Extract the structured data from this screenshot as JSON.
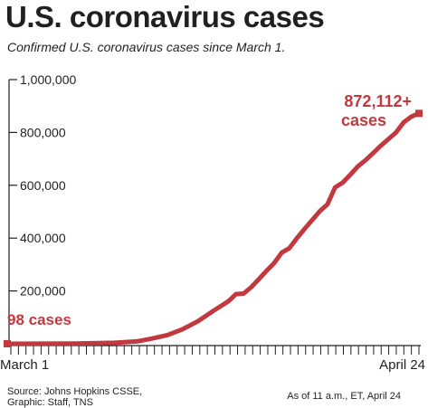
{
  "title": "U.S. coronavirus cases",
  "subtitle": "Confirmed U.S. coronavirus cases since March 1.",
  "footer": {
    "source_line1": "Source: Johns Hopkins CSSE,",
    "source_line2": "Graphic: Staff, TNS",
    "as_of": "As of 11 a.m., ET, April 24"
  },
  "colors": {
    "line": "#c1393f",
    "text": "#231f20",
    "axis": "#231f20"
  },
  "chart_data": {
    "type": "line",
    "xlabel": "",
    "ylabel": "",
    "x_tick_labels": [
      "March 1",
      "April 24"
    ],
    "x_range": [
      "2020-03-01",
      "2020-04-24"
    ],
    "ylim": [
      0,
      1000000
    ],
    "y_ticks": [
      200000,
      400000,
      600000,
      800000,
      1000000
    ],
    "y_tick_labels": [
      "200,000",
      "400,000",
      "600,000",
      "800,000",
      "1,000,000"
    ],
    "grid": false,
    "series": [
      {
        "points": [
          [
            "2020-03-01",
            98
          ],
          [
            "2020-03-05",
            220
          ],
          [
            "2020-03-10",
            1000
          ],
          [
            "2020-03-15",
            3600
          ],
          [
            "2020-03-18",
            9000
          ],
          [
            "2020-03-20",
            20000
          ],
          [
            "2020-03-22",
            33000
          ],
          [
            "2020-03-24",
            55000
          ],
          [
            "2020-03-26",
            85000
          ],
          [
            "2020-03-28",
            124000
          ],
          [
            "2020-03-30",
            161000
          ],
          [
            "2020-03-31",
            188000
          ],
          [
            "2020-04-01",
            190000
          ],
          [
            "2020-04-02",
            214000
          ],
          [
            "2020-04-03",
            245000
          ],
          [
            "2020-04-04",
            276000
          ],
          [
            "2020-04-05",
            305000
          ],
          [
            "2020-04-06",
            345000
          ],
          [
            "2020-04-07",
            362000
          ],
          [
            "2020-04-08",
            400000
          ],
          [
            "2020-04-09",
            435000
          ],
          [
            "2020-04-10",
            468000
          ],
          [
            "2020-04-11",
            502000
          ],
          [
            "2020-04-12",
            528000
          ],
          [
            "2020-04-13",
            592000
          ],
          [
            "2020-04-14",
            610000
          ],
          [
            "2020-04-15",
            640000
          ],
          [
            "2020-04-16",
            672000
          ],
          [
            "2020-04-17",
            695000
          ],
          [
            "2020-04-18",
            722000
          ],
          [
            "2020-04-19",
            750000
          ],
          [
            "2020-04-20",
            775000
          ],
          [
            "2020-04-21",
            800000
          ],
          [
            "2020-04-22",
            838000
          ],
          [
            "2020-04-23",
            860000
          ],
          [
            "2020-04-24",
            872112
          ]
        ]
      }
    ],
    "annotations": [
      {
        "text": "98 cases",
        "date": "2020-03-01",
        "value": 98
      },
      {
        "line1": "872,112+",
        "line2": "cases",
        "date": "2020-04-24",
        "value": 872112
      }
    ]
  }
}
